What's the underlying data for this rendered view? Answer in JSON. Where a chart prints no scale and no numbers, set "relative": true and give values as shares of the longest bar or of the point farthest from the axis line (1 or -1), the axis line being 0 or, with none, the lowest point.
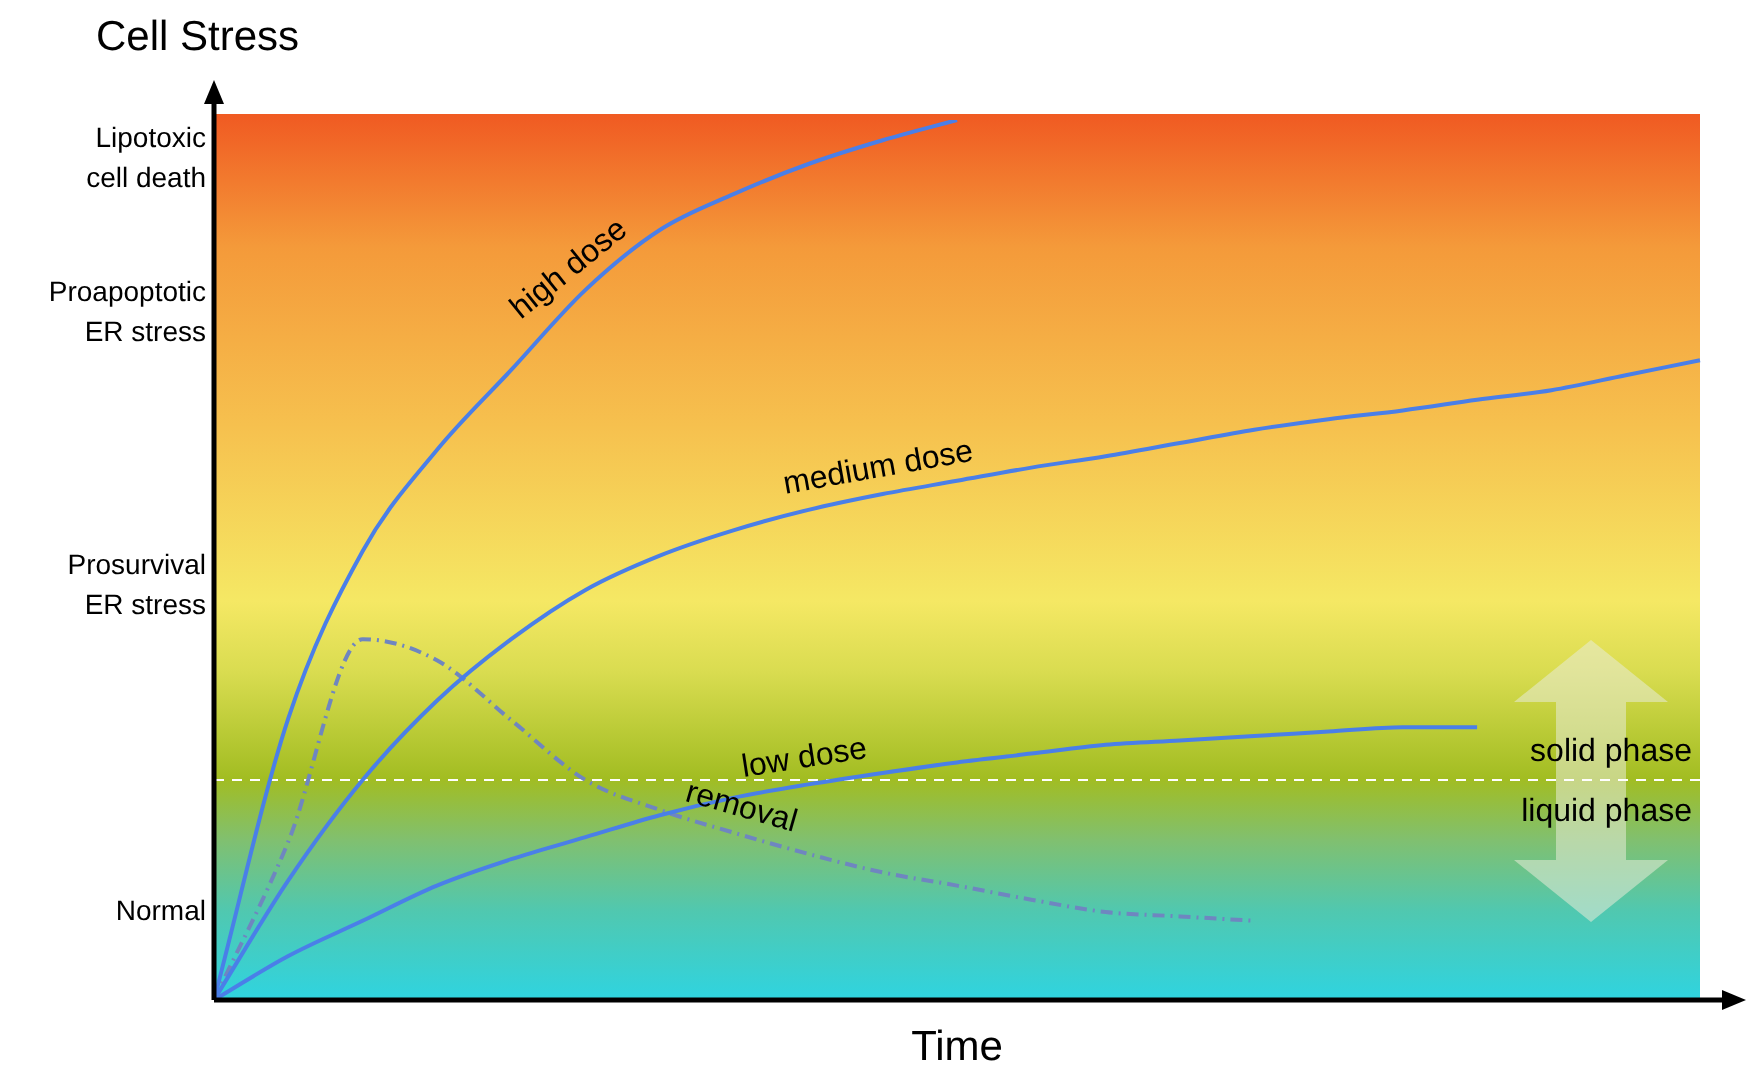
{
  "chart_data": {
    "type": "line",
    "relative": true,
    "ylabel": "Cell Stress",
    "xlabel": "Time",
    "categories": [
      null,
      null,
      null,
      null,
      null,
      null,
      null,
      null,
      null,
      null,
      null,
      null,
      null,
      null,
      null,
      null,
      null,
      null,
      null,
      null,
      null
    ],
    "series": [
      {
        "name": "high dose",
        "color": "#4a7fe8",
        "values": [
          0,
          0.32,
          0.51,
          0.625,
          0.716,
          0.807,
          0.875,
          0.916,
          0.95,
          0.977,
          1.0,
          null,
          null,
          null,
          null,
          null,
          null,
          null,
          null,
          null,
          null
        ]
      },
      {
        "name": "medium dose",
        "color": "#4a7fe8",
        "values": [
          0,
          0.136,
          0.25,
          0.34,
          0.41,
          0.466,
          0.505,
          0.534,
          0.557,
          0.575,
          0.59,
          0.605,
          0.618,
          0.633,
          0.648,
          0.66,
          0.67,
          0.682,
          0.693,
          0.71,
          0.727
        ]
      },
      {
        "name": "low dose",
        "color": "#4a7fe8",
        "values": [
          0,
          0.05,
          0.09,
          0.13,
          0.16,
          0.185,
          0.21,
          0.23,
          0.245,
          0.258,
          0.27,
          0.28,
          0.29,
          0.295,
          0.3,
          0.305,
          0.31,
          0.31,
          null,
          null,
          null
        ]
      },
      {
        "name": "removal",
        "color": "#6f86c0",
        "line_style": "dashdot",
        "values": [
          0,
          0.18,
          0.41,
          0.386,
          0.318,
          0.25,
          0.216,
          0.19,
          0.166,
          0.145,
          0.13,
          0.114,
          0.1,
          0.095,
          0.09,
          null,
          null,
          null,
          null,
          null,
          null
        ]
      }
    ],
    "ref_lines": [
      {
        "axis": "y",
        "value": 0.25,
        "color": "#ffffff",
        "line_style": "dashed"
      }
    ],
    "annotations": [
      "Lipotoxic\ncell death",
      "Proapoptotic\nER stress",
      "Prosurvival\nER stress",
      "Normal",
      "solid phase",
      "liquid phase"
    ],
    "legend": false
  }
}
